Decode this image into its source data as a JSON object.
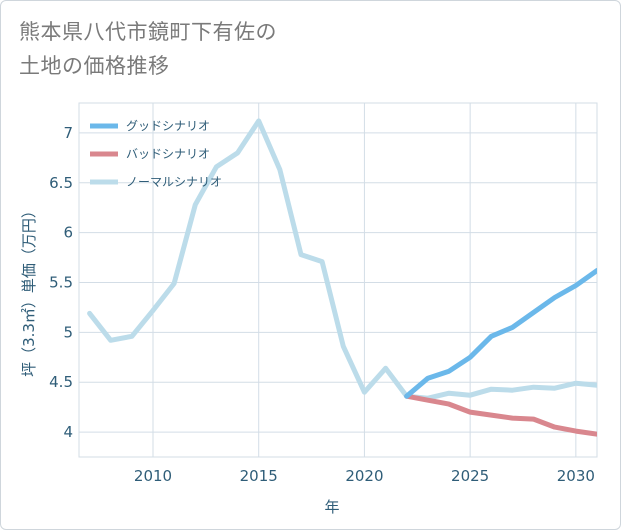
{
  "title_line1": "熊本県八代市鏡町下有佐の",
  "title_line2": "土地の価格推移",
  "chart_data": {
    "type": "line",
    "xlabel": "年",
    "ylabel": "坪（3.3㎡）単価（万円）",
    "xlim": [
      2006.5,
      2031
    ],
    "ylim": [
      3.75,
      7.3
    ],
    "xticks": [
      2010,
      2015,
      2020,
      2025,
      2030
    ],
    "yticks": [
      4,
      4.5,
      5,
      5.5,
      6,
      6.5,
      7
    ],
    "ytick_labels": [
      "4",
      "4.5",
      "5",
      "5.5",
      "6",
      "6.5",
      "7"
    ],
    "grid": true,
    "legend_position": "top-left",
    "series": [
      {
        "name": "グッドシナリオ",
        "color": "#6bb8ea",
        "x": [
          2022,
          2023,
          2024,
          2025,
          2026,
          2027,
          2028,
          2029,
          2030,
          2031
        ],
        "y": [
          4.36,
          4.54,
          4.61,
          4.75,
          4.96,
          5.05,
          5.2,
          5.35,
          5.47,
          5.62
        ]
      },
      {
        "name": "バッドシナリオ",
        "color": "#d9878e",
        "x": [
          2022,
          2023,
          2024,
          2025,
          2026,
          2027,
          2028,
          2029,
          2030,
          2031
        ],
        "y": [
          4.36,
          4.32,
          4.28,
          4.2,
          4.17,
          4.14,
          4.13,
          4.05,
          4.01,
          3.98
        ]
      },
      {
        "name": "ノーマルシナリオ",
        "color": "#bcdcea",
        "x": [
          2007,
          2008,
          2009,
          2010,
          2011,
          2012,
          2013,
          2014,
          2015,
          2016,
          2017,
          2018,
          2019,
          2020,
          2021,
          2022,
          2023,
          2024,
          2025,
          2026,
          2027,
          2028,
          2029,
          2030,
          2031
        ],
        "y": [
          5.19,
          4.92,
          4.96,
          5.22,
          5.49,
          6.28,
          6.66,
          6.8,
          7.12,
          6.63,
          5.78,
          5.71,
          4.86,
          4.4,
          4.64,
          4.36,
          4.34,
          4.39,
          4.37,
          4.43,
          4.42,
          4.45,
          4.44,
          4.49,
          4.47
        ]
      }
    ]
  }
}
